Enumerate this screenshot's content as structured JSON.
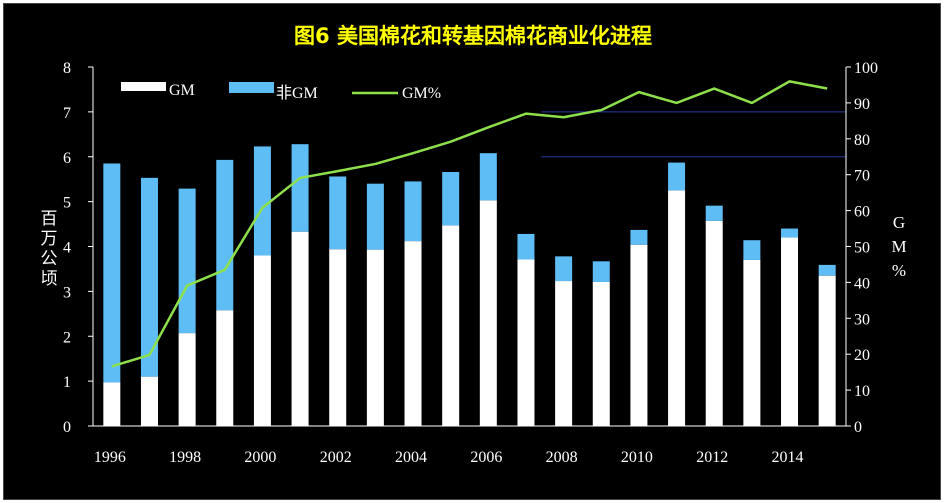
{
  "chart_data": {
    "type": "bar",
    "title": "图6  美国棉花和转基因棉花商业化进程",
    "ylabel": "百万公顷",
    "y2label": "GM%",
    "ylim": [
      0,
      8
    ],
    "y2lim": [
      0,
      100
    ],
    "yticks": [
      "0",
      "1",
      "2",
      "3",
      "4",
      "5",
      "6",
      "7",
      "8"
    ],
    "y2ticks": [
      "0",
      "10",
      "20",
      "30",
      "40",
      "50",
      "60",
      "70",
      "80",
      "90",
      "100"
    ],
    "categories": [
      "1996",
      "1997",
      "1998",
      "1999",
      "2000",
      "2001",
      "2002",
      "2003",
      "2004",
      "2005",
      "2006",
      "2007",
      "2008",
      "2009",
      "2010",
      "2011",
      "2012",
      "2013",
      "2014",
      "2015"
    ],
    "xtick_labels": [
      "1996",
      "1998",
      "2000",
      "2002",
      "2004",
      "2006",
      "2008",
      "2010",
      "2012",
      "2014"
    ],
    "series": [
      {
        "name": "GM",
        "color": "#ffffff",
        "values": [
          0.97,
          1.1,
          2.07,
          2.58,
          3.8,
          4.33,
          3.94,
          3.93,
          4.12,
          4.47,
          5.03,
          3.71,
          3.23,
          3.21,
          4.04,
          5.25,
          4.57,
          3.7,
          4.2,
          3.35
        ]
      },
      {
        "name": "非GM",
        "color": "#5fbdf5",
        "values": [
          4.88,
          4.43,
          3.22,
          3.35,
          2.43,
          1.95,
          1.62,
          1.47,
          1.33,
          1.19,
          1.05,
          0.57,
          0.55,
          0.46,
          0.33,
          0.62,
          0.34,
          0.44,
          0.2,
          0.24
        ]
      },
      {
        "name": "GM%",
        "type": "line",
        "color": "#8ee04b",
        "values": [
          16.6,
          19.8,
          39.1,
          43.5,
          60.8,
          69.1,
          71.0,
          73.0,
          76.0,
          79.2,
          83.2,
          87.0,
          86.0,
          88.0,
          93.0,
          90.0,
          94.0,
          90.0,
          96.0,
          94.0
        ]
      }
    ],
    "legend": {
      "position": "top-left",
      "items": [
        "GM",
        "非GM",
        "GM%"
      ]
    },
    "grid": false
  }
}
